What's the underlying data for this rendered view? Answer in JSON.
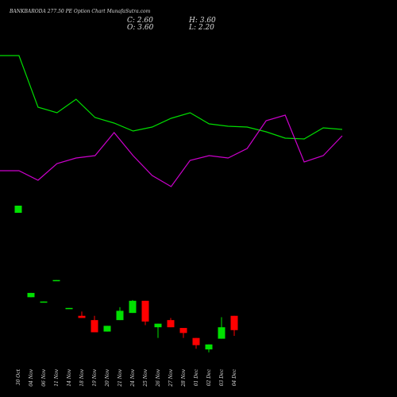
{
  "chart_data": {
    "type": "candlestick",
    "title": "BANKBARODA 277.50 PE Option Chart MunafaSutra.com",
    "info": [
      "C: 2.60",
      "H: 3.60",
      "O: 3.60",
      "L: 2.20"
    ],
    "categories": [
      "30 Oct",
      "04 Nov",
      "06 Nov",
      "11 Nov",
      "14 Nov",
      "18 Nov",
      "19 Nov",
      "20 Nov",
      "21 Nov",
      "24 Nov",
      "25 Nov",
      "26 Nov",
      "27 Nov",
      "28 Nov",
      "01 Dec",
      "02 Dec",
      "03 Dec",
      "04 Dec"
    ],
    "open": [
      10.8,
      4.9,
      4.55,
      6.05,
      4.12,
      3.6,
      3.3,
      2.5,
      3.3,
      3.8,
      4.65,
      2.8,
      3.3,
      2.75,
      2.05,
      1.25,
      2.0,
      3.6
    ],
    "high": [
      11.3,
      5.2,
      4.6,
      6.1,
      4.15,
      3.9,
      3.6,
      2.9,
      4.2,
      4.7,
      4.65,
      3.05,
      3.45,
      2.75,
      2.05,
      1.6,
      3.5,
      3.6
    ],
    "low": [
      10.8,
      4.9,
      4.55,
      6.05,
      4.12,
      3.45,
      2.45,
      2.5,
      3.3,
      3.8,
      2.95,
      2.05,
      2.8,
      2.05,
      1.3,
      1.05,
      2.0,
      2.2
    ],
    "close": [
      11.3,
      5.2,
      4.6,
      6.1,
      4.15,
      3.45,
      2.45,
      2.9,
      3.95,
      4.65,
      3.2,
      3.05,
      2.8,
      2.4,
      1.55,
      1.6,
      2.8,
      2.6
    ],
    "up_color": "#00e000",
    "down_color": "#ff0000",
    "ylim": [
      0.7,
      22.9
    ],
    "overlay": {
      "ylim": [
        0,
        100
      ],
      "series": [
        {
          "color": "#00dd00",
          "values": [
            90,
            90,
            57.5,
            54,
            62.5,
            51,
            47.5,
            42.5,
            45,
            50.5,
            54,
            47,
            45.5,
            45,
            42,
            38,
            37.5,
            44.5,
            43.5
          ]
        },
        {
          "color": "#cc00cc",
          "values": [
            17.5,
            17.5,
            11.5,
            22,
            25.5,
            27,
            41.5,
            27,
            14.5,
            7.5,
            24,
            27,
            25.5,
            31.5,
            49,
            52.5,
            23,
            27,
            39.5
          ]
        }
      ]
    }
  }
}
